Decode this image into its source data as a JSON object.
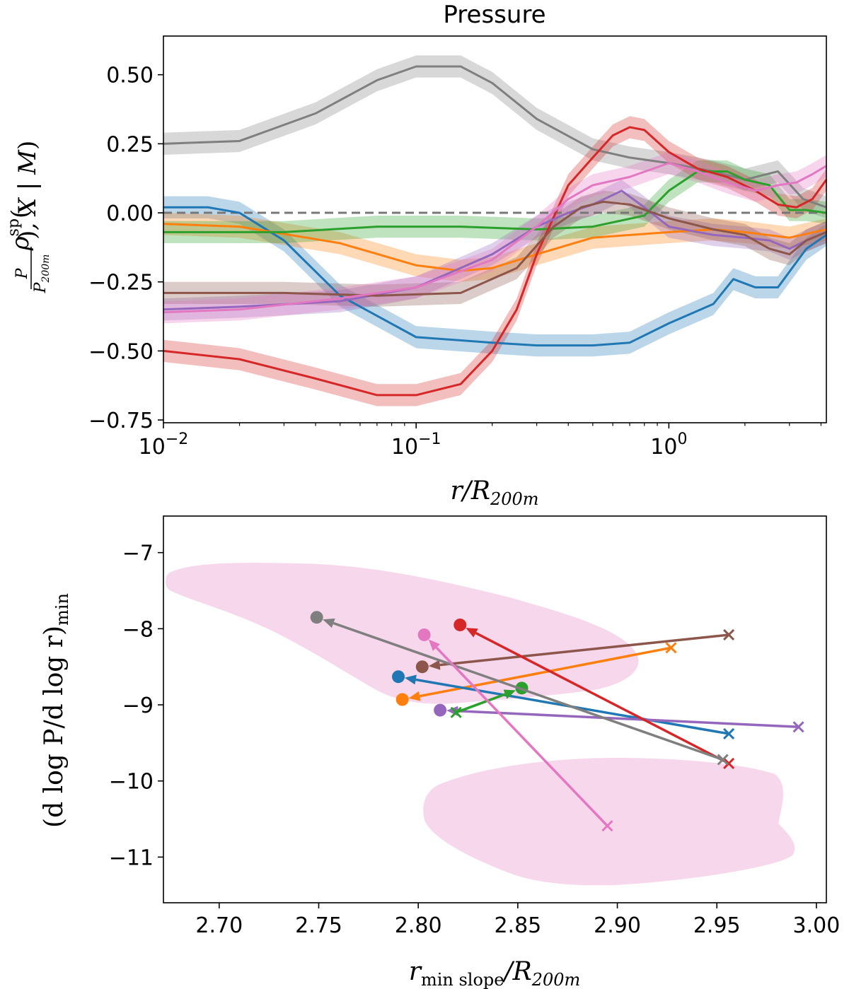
{
  "chart_data": [
    {
      "type": "line",
      "title": "Pressure",
      "xlabel": "r/R200m",
      "ylabel": "ρsp(P/P200m, X | M)",
      "xscale": "log",
      "xlim": [
        0.01,
        4.2
      ],
      "ylim": [
        -0.76,
        0.64
      ],
      "yticks": [
        0.5,
        0.25,
        0.0,
        -0.25,
        -0.5,
        -0.75
      ],
      "ytick_labels": [
        "0.50",
        "0.25",
        "0.00",
        "−0.25",
        "−0.50",
        "−0.75"
      ],
      "xticks": [
        0.01,
        0.1,
        1
      ],
      "xtick_labels": [
        "10",
        "10",
        "10"
      ],
      "xtick_exponents": [
        "−2",
        "−1",
        "0"
      ],
      "reference_line": 0.0,
      "band_halfwidth": 0.04,
      "series": [
        {
          "name": "gray",
          "color": "#7f7f7f",
          "x": [
            0.01,
            0.02,
            0.04,
            0.07,
            0.1,
            0.15,
            0.2,
            0.3,
            0.5,
            0.7,
            1,
            1.5,
            2,
            2.7,
            3.4,
            4.2
          ],
          "y": [
            0.25,
            0.26,
            0.36,
            0.48,
            0.53,
            0.53,
            0.47,
            0.34,
            0.23,
            0.2,
            0.18,
            0.15,
            0.12,
            0.15,
            0.05,
            0.02
          ]
        },
        {
          "name": "blue",
          "color": "#1f77b4",
          "x": [
            0.01,
            0.015,
            0.02,
            0.03,
            0.05,
            0.1,
            0.2,
            0.3,
            0.5,
            0.7,
            1,
            1.5,
            1.8,
            2.2,
            2.7,
            3.5,
            4.2
          ],
          "y": [
            0.02,
            0.02,
            0.0,
            -0.1,
            -0.3,
            -0.45,
            -0.47,
            -0.48,
            -0.48,
            -0.47,
            -0.4,
            -0.33,
            -0.24,
            -0.27,
            -0.27,
            -0.13,
            -0.08
          ]
        },
        {
          "name": "orange",
          "color": "#ff7f0e",
          "x": [
            0.01,
            0.02,
            0.05,
            0.1,
            0.15,
            0.2,
            0.3,
            0.5,
            1,
            1.5,
            2,
            3,
            4.2
          ],
          "y": [
            -0.04,
            -0.05,
            -0.11,
            -0.19,
            -0.21,
            -0.2,
            -0.15,
            -0.09,
            -0.07,
            -0.06,
            -0.07,
            -0.09,
            -0.06
          ]
        },
        {
          "name": "green",
          "color": "#2ca02c",
          "x": [
            0.01,
            0.03,
            0.07,
            0.15,
            0.3,
            0.5,
            0.8,
            1.0,
            1.3,
            1.7,
            2.0,
            2.5,
            3.0,
            3.5,
            4.2
          ],
          "y": [
            -0.07,
            -0.07,
            -0.05,
            -0.05,
            -0.06,
            -0.05,
            -0.01,
            0.08,
            0.15,
            0.15,
            0.12,
            0.1,
            0.01,
            0.01,
            0.0
          ]
        },
        {
          "name": "red",
          "color": "#d62728",
          "x": [
            0.01,
            0.02,
            0.04,
            0.07,
            0.1,
            0.15,
            0.2,
            0.25,
            0.3,
            0.4,
            0.5,
            0.6,
            0.7,
            0.8,
            1.0,
            1.3,
            1.7,
            2.2,
            2.7,
            3.2,
            3.7,
            4.2
          ],
          "y": [
            -0.5,
            -0.53,
            -0.6,
            -0.66,
            -0.66,
            -0.62,
            -0.5,
            -0.35,
            -0.15,
            0.1,
            0.2,
            0.28,
            0.31,
            0.3,
            0.22,
            0.16,
            0.13,
            0.08,
            0.03,
            0.02,
            0.05,
            0.12
          ]
        },
        {
          "name": "purple",
          "color": "#9467bd",
          "x": [
            0.01,
            0.02,
            0.05,
            0.1,
            0.2,
            0.3,
            0.4,
            0.5,
            0.65,
            0.8,
            1,
            1.5,
            2,
            2.5,
            3,
            3.5,
            4.2
          ],
          "y": [
            -0.35,
            -0.34,
            -0.32,
            -0.27,
            -0.15,
            -0.05,
            0.0,
            0.03,
            0.08,
            0.02,
            -0.05,
            -0.08,
            -0.09,
            -0.1,
            -0.13,
            -0.1,
            -0.07
          ]
        },
        {
          "name": "brown",
          "color": "#8c564b",
          "x": [
            0.01,
            0.03,
            0.07,
            0.15,
            0.25,
            0.35,
            0.45,
            0.55,
            0.7,
            1,
            1.5,
            2,
            2.5,
            3,
            3.5,
            4.2
          ],
          "y": [
            -0.29,
            -0.29,
            -0.3,
            -0.29,
            -0.2,
            -0.05,
            0.02,
            0.04,
            0.03,
            -0.02,
            -0.06,
            -0.08,
            -0.13,
            -0.15,
            -0.1,
            -0.07
          ]
        },
        {
          "name": "pink",
          "color": "#e377c2",
          "x": [
            0.01,
            0.02,
            0.05,
            0.1,
            0.2,
            0.3,
            0.4,
            0.5,
            0.7,
            1,
            1.3,
            1.7,
            2.2,
            2.7,
            3.2,
            3.7,
            4.2
          ],
          "y": [
            -0.36,
            -0.35,
            -0.31,
            -0.27,
            -0.17,
            -0.05,
            0.05,
            0.1,
            0.13,
            0.18,
            0.15,
            0.11,
            0.08,
            0.1,
            0.11,
            0.14,
            0.17
          ]
        }
      ]
    },
    {
      "type": "scatter",
      "xlabel": "r_min slope/R200m",
      "ylabel": "(d log P/d log r)min",
      "xlim": [
        2.672,
        3.005
      ],
      "ylim": [
        -11.6,
        -6.52
      ],
      "xticks": [
        2.7,
        2.75,
        2.8,
        2.85,
        2.9,
        2.95,
        3.0
      ],
      "xtick_labels": [
        "2.70",
        "2.75",
        "2.80",
        "2.85",
        "2.90",
        "2.95",
        "3.00"
      ],
      "yticks": [
        -7,
        -8,
        -9,
        -10,
        -11
      ],
      "ytick_labels": [
        "−7",
        "−8",
        "−9",
        "−10",
        "−11"
      ],
      "arrows": [
        {
          "name": "brown",
          "color": "#8c564b",
          "from": [
            2.956,
            -8.08
          ],
          "to": [
            2.802,
            -8.5
          ]
        },
        {
          "name": "orange",
          "color": "#ff7f0e",
          "from": [
            2.927,
            -8.25
          ],
          "to": [
            2.792,
            -8.93
          ]
        },
        {
          "name": "blue",
          "color": "#1f77b4",
          "from": [
            2.956,
            -9.38
          ],
          "to": [
            2.79,
            -8.63
          ]
        },
        {
          "name": "purple",
          "color": "#9467bd",
          "from": [
            2.991,
            -9.29
          ],
          "to": [
            2.811,
            -9.07
          ]
        },
        {
          "name": "green",
          "color": "#2ca02c",
          "from": [
            2.819,
            -9.1
          ],
          "to": [
            2.852,
            -8.78
          ]
        },
        {
          "name": "red",
          "color": "#d62728",
          "from": [
            2.956,
            -9.77
          ],
          "to": [
            2.821,
            -7.95
          ]
        },
        {
          "name": "gray",
          "color": "#7f7f7f",
          "from": [
            2.953,
            -9.72
          ],
          "to": [
            2.749,
            -7.85
          ]
        },
        {
          "name": "pink",
          "color": "#e377c2",
          "from": [
            2.895,
            -10.59
          ],
          "to": [
            2.803,
            -8.08
          ]
        }
      ]
    }
  ],
  "labels": {
    "top_title": "Pressure",
    "top_ylabel_rho": "ρ",
    "top_ylabel_sp": "sp",
    "top_ylabel_frac_num": "P",
    "top_ylabel_frac_den": "P",
    "top_ylabel_frac_den_sub": "200m",
    "top_ylabel_rest": ",  X | M",
    "top_xlabel_r": "r",
    "top_xlabel_R": "/R",
    "top_xlabel_sub": "200m",
    "bottom_ylabel_main": "(d log P/d log r)",
    "bottom_ylabel_sub": "min",
    "bottom_xlabel_r": "r",
    "bottom_xlabel_sub": "min slope",
    "bottom_xlabel_R": "/R",
    "bottom_xlabel_sub2": "200m"
  }
}
